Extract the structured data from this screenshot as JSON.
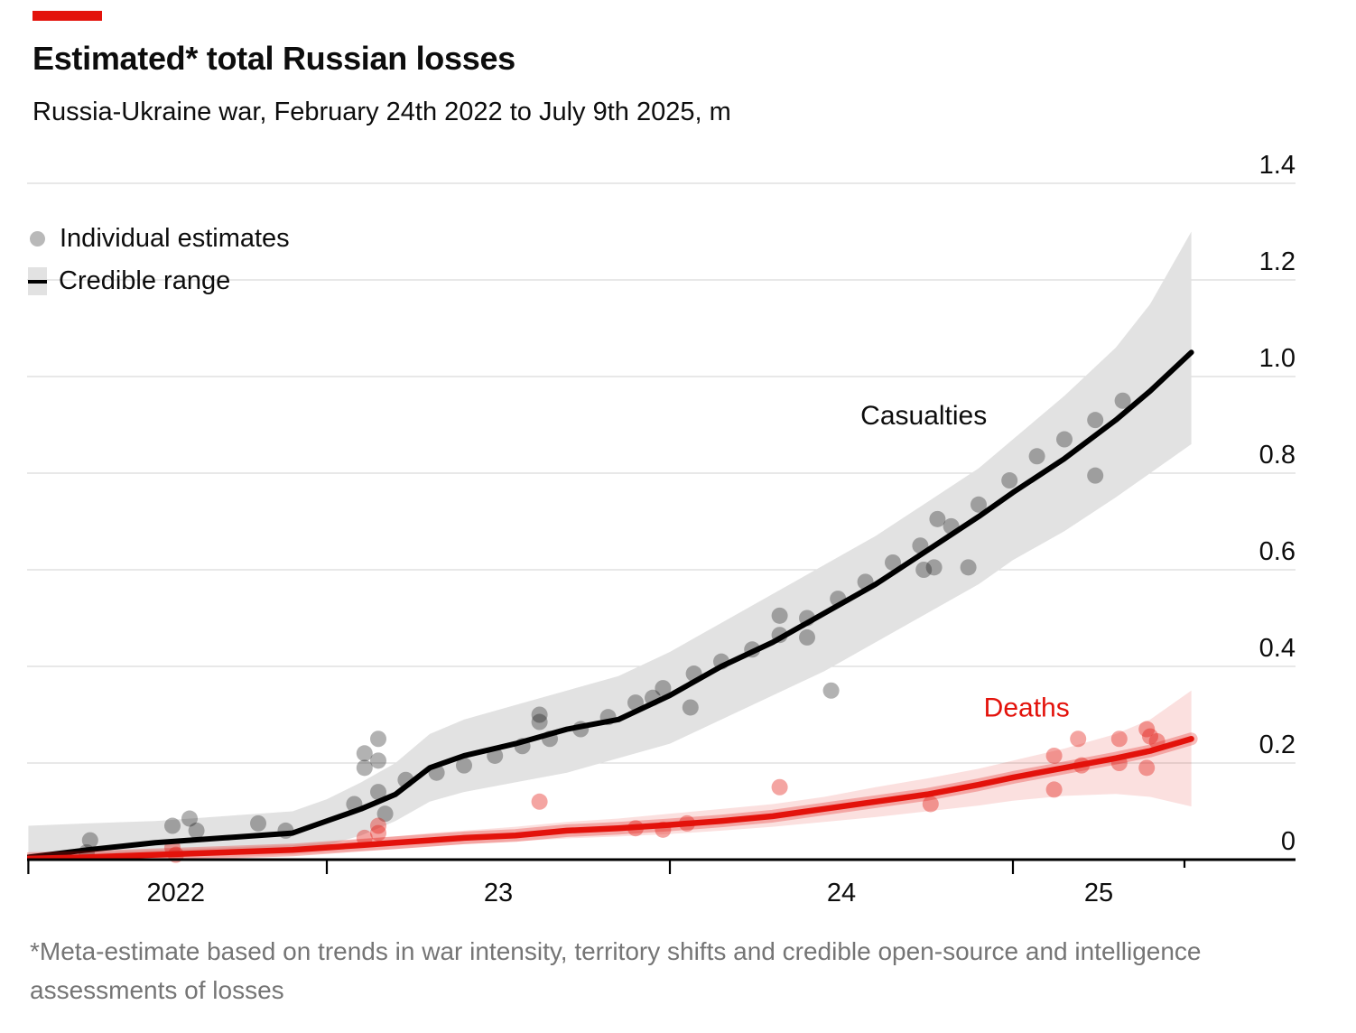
{
  "header": {
    "accent_bar_color": "#e3120b",
    "title": "Estimated* total Russian losses",
    "subtitle": "Russia-Ukraine war, February 24th 2022 to July 9th 2025, m"
  },
  "legend": {
    "items": [
      {
        "swatch": "gray-dot",
        "label": "Individual estimates"
      },
      {
        "swatch": "gray-band-with-line",
        "label": "Credible range"
      }
    ]
  },
  "footnote": "*Meta-estimate based on trends in war intensity, territory shifts and credible open-source and intelligence assessments of losses",
  "chart_data": {
    "type": "line",
    "title": "Estimated* total Russian losses",
    "subtitle": "Russia-Ukraine war, February 24th 2022 to July 9th 2025, m",
    "unit": "millions of people",
    "xlabel": "",
    "ylabel": "",
    "grid": "horizontal",
    "legend_position": "top-left",
    "x_range": [
      2022.12,
      2025.82
    ],
    "ylim": [
      0,
      1.4
    ],
    "y_axis": {
      "side": "right",
      "ticks": [
        {
          "v": 0,
          "label": "0"
        },
        {
          "v": 0.2,
          "label": "0.2"
        },
        {
          "v": 0.4,
          "label": "0.4"
        },
        {
          "v": 0.6,
          "label": "0.6"
        },
        {
          "v": 0.8,
          "label": "0.8"
        },
        {
          "v": 1.0,
          "label": "1.0"
        },
        {
          "v": 1.2,
          "label": "1.2"
        },
        {
          "v": 1.4,
          "label": "1.4"
        }
      ]
    },
    "x_axis": {
      "major_ticks": [
        2022.13,
        2023,
        2024,
        2025
      ],
      "minor_ticks": [
        2025.5
      ],
      "labels": [
        {
          "text": "2022",
          "year": 2022.56
        },
        {
          "text": "23",
          "year": 2023.5
        },
        {
          "text": "24",
          "year": 2024.5
        },
        {
          "text": "25",
          "year": 2025.25
        }
      ]
    },
    "x": [
      2022.13,
      2022.3,
      2022.5,
      2022.7,
      2022.9,
      2023.0,
      2023.1,
      2023.2,
      2023.3,
      2023.4,
      2023.55,
      2023.7,
      2023.85,
      2024.0,
      2024.15,
      2024.3,
      2024.45,
      2024.6,
      2024.75,
      2024.9,
      2025.0,
      2025.15,
      2025.3,
      2025.4,
      2025.52
    ],
    "series": [
      {
        "name": "Casualties",
        "color": "#000000",
        "line_width": 6,
        "band_color": "#e2e2e2",
        "band_opacity": 1,
        "values": [
          0.005,
          0.02,
          0.035,
          0.045,
          0.055,
          0.08,
          0.105,
          0.135,
          0.19,
          0.215,
          0.24,
          0.27,
          0.29,
          0.34,
          0.4,
          0.45,
          0.51,
          0.57,
          0.64,
          0.71,
          0.76,
          0.83,
          0.91,
          0.97,
          1.05
        ],
        "band_upper": [
          0.07,
          0.075,
          0.08,
          0.09,
          0.1,
          0.125,
          0.16,
          0.2,
          0.26,
          0.29,
          0.32,
          0.35,
          0.38,
          0.43,
          0.49,
          0.55,
          0.61,
          0.67,
          0.74,
          0.81,
          0.87,
          0.96,
          1.06,
          1.15,
          1.3
        ],
        "band_lower": [
          -0.005,
          0.0,
          0.005,
          0.01,
          0.02,
          0.03,
          0.05,
          0.08,
          0.12,
          0.14,
          0.16,
          0.18,
          0.21,
          0.24,
          0.29,
          0.34,
          0.39,
          0.45,
          0.51,
          0.57,
          0.62,
          0.68,
          0.75,
          0.8,
          0.86
        ]
      },
      {
        "name": "Deaths",
        "color": "#e3120b",
        "line_width": 6.5,
        "halo_width": 14,
        "halo_opacity": 0.28,
        "band_color": "#e3120b",
        "band_opacity": 0.13,
        "values": [
          0.002,
          0.005,
          0.01,
          0.015,
          0.02,
          0.025,
          0.03,
          0.035,
          0.04,
          0.045,
          0.05,
          0.06,
          0.065,
          0.072,
          0.08,
          0.09,
          0.105,
          0.12,
          0.135,
          0.155,
          0.17,
          0.19,
          0.21,
          0.225,
          0.25
        ],
        "band_upper": [
          0.01,
          0.015,
          0.02,
          0.025,
          0.03,
          0.035,
          0.042,
          0.048,
          0.055,
          0.06,
          0.068,
          0.078,
          0.085,
          0.095,
          0.105,
          0.115,
          0.13,
          0.15,
          0.168,
          0.188,
          0.205,
          0.23,
          0.26,
          0.29,
          0.35
        ],
        "band_lower": [
          -0.005,
          -0.003,
          0.0,
          0.005,
          0.01,
          0.014,
          0.018,
          0.022,
          0.027,
          0.032,
          0.038,
          0.044,
          0.048,
          0.053,
          0.06,
          0.068,
          0.078,
          0.088,
          0.1,
          0.112,
          0.122,
          0.132,
          0.136,
          0.13,
          0.11
        ]
      }
    ],
    "scatter": [
      {
        "name": "Casualties individual estimates",
        "color": "#000000",
        "opacity": 0.3,
        "radius": 9,
        "points": [
          [
            2022.3,
            0.015
          ],
          [
            2022.31,
            0.04
          ],
          [
            2022.55,
            0.07
          ],
          [
            2022.6,
            0.085
          ],
          [
            2022.62,
            0.06
          ],
          [
            2022.8,
            0.075
          ],
          [
            2022.88,
            0.06
          ],
          [
            2023.08,
            0.115
          ],
          [
            2023.11,
            0.19
          ],
          [
            2023.11,
            0.22
          ],
          [
            2023.15,
            0.25
          ],
          [
            2023.15,
            0.205
          ],
          [
            2023.15,
            0.14
          ],
          [
            2023.17,
            0.095
          ],
          [
            2023.23,
            0.165
          ],
          [
            2023.32,
            0.18
          ],
          [
            2023.4,
            0.195
          ],
          [
            2023.49,
            0.215
          ],
          [
            2023.57,
            0.235
          ],
          [
            2023.62,
            0.3
          ],
          [
            2023.62,
            0.285
          ],
          [
            2023.65,
            0.25
          ],
          [
            2023.74,
            0.27
          ],
          [
            2023.82,
            0.295
          ],
          [
            2023.9,
            0.325
          ],
          [
            2023.95,
            0.335
          ],
          [
            2023.98,
            0.355
          ],
          [
            2024.06,
            0.315
          ],
          [
            2024.07,
            0.385
          ],
          [
            2024.15,
            0.41
          ],
          [
            2024.24,
            0.435
          ],
          [
            2024.32,
            0.505
          ],
          [
            2024.32,
            0.465
          ],
          [
            2024.4,
            0.5
          ],
          [
            2024.4,
            0.46
          ],
          [
            2024.47,
            0.35
          ],
          [
            2024.49,
            0.54
          ],
          [
            2024.57,
            0.575
          ],
          [
            2024.65,
            0.615
          ],
          [
            2024.73,
            0.65
          ],
          [
            2024.74,
            0.6
          ],
          [
            2024.77,
            0.605
          ],
          [
            2024.78,
            0.705
          ],
          [
            2024.82,
            0.69
          ],
          [
            2024.87,
            0.605
          ],
          [
            2024.9,
            0.735
          ],
          [
            2024.99,
            0.785
          ],
          [
            2025.07,
            0.835
          ],
          [
            2025.15,
            0.87
          ],
          [
            2025.24,
            0.91
          ],
          [
            2025.24,
            0.795
          ],
          [
            2025.32,
            0.95
          ]
        ]
      },
      {
        "name": "Deaths individual estimates",
        "color": "#e3120b",
        "opacity": 0.38,
        "radius": 9,
        "points": [
          [
            2022.55,
            0.025
          ],
          [
            2022.56,
            0.01
          ],
          [
            2023.11,
            0.045
          ],
          [
            2023.15,
            0.07
          ],
          [
            2023.15,
            0.055
          ],
          [
            2023.62,
            0.12
          ],
          [
            2023.9,
            0.065
          ],
          [
            2023.98,
            0.062
          ],
          [
            2024.05,
            0.075
          ],
          [
            2024.32,
            0.15
          ],
          [
            2024.76,
            0.115
          ],
          [
            2025.12,
            0.215
          ],
          [
            2025.12,
            0.145
          ],
          [
            2025.19,
            0.25
          ],
          [
            2025.2,
            0.195
          ],
          [
            2025.31,
            0.25
          ],
          [
            2025.31,
            0.2
          ],
          [
            2025.39,
            0.27
          ],
          [
            2025.39,
            0.19
          ],
          [
            2025.4,
            0.255
          ],
          [
            2025.42,
            0.245
          ]
        ]
      }
    ],
    "annotations": [
      {
        "text": "Casualties",
        "color": "#0d0d0d",
        "x": 2024.74,
        "y": 0.92
      },
      {
        "text": "Deaths",
        "color": "#e3120b",
        "x": 2025.04,
        "y": 0.315
      }
    ]
  }
}
